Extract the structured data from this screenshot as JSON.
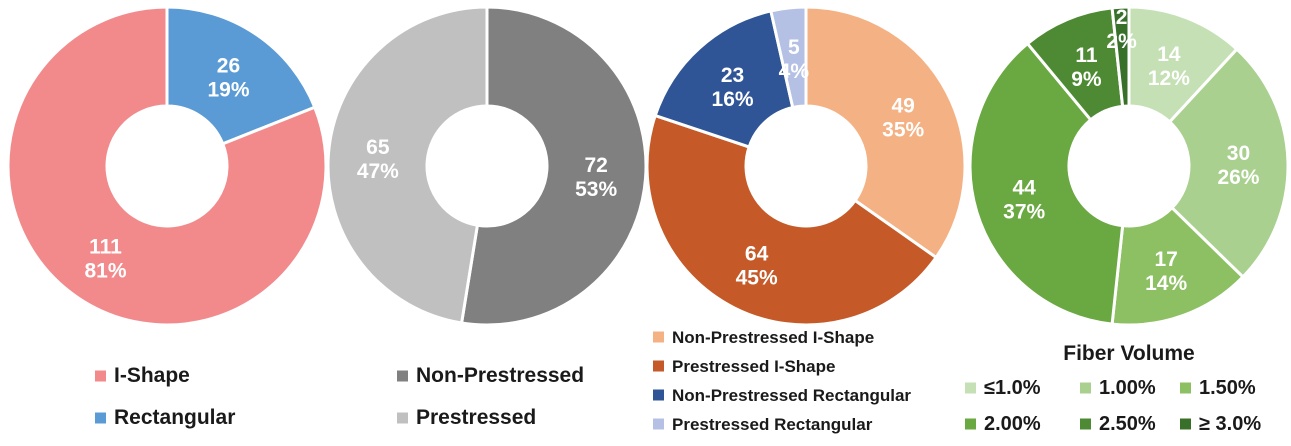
{
  "chart_data": [
    {
      "type": "pie",
      "donut": true,
      "categories": [
        "Rectangular",
        "I-Shape"
      ],
      "values": [
        26,
        111
      ],
      "percents": [
        "19%",
        "81%"
      ],
      "colors": [
        "#5b9bd5",
        "#f28a8c"
      ],
      "legend": [
        {
          "label": "I-Shape",
          "color": "#f28a8c"
        },
        {
          "label": "Rectangular",
          "color": "#5b9bd5"
        }
      ]
    },
    {
      "type": "pie",
      "donut": true,
      "categories": [
        "Non-Prestressed",
        "Prestressed"
      ],
      "values": [
        72,
        65
      ],
      "percents": [
        "53%",
        "47%"
      ],
      "colors": [
        "#808080",
        "#c0c0c0"
      ],
      "legend": [
        {
          "label": "Non-Prestressed",
          "color": "#808080"
        },
        {
          "label": "Prestressed",
          "color": "#c0c0c0"
        }
      ]
    },
    {
      "type": "pie",
      "donut": true,
      "categories": [
        "Non-Prestressed I-Shape",
        "Prestressed I-Shape",
        "Non-Prestressed Rectangular",
        "Prestressed Rectangular"
      ],
      "values": [
        49,
        64,
        23,
        5
      ],
      "percents": [
        "35%",
        "45%",
        "16%",
        "4%"
      ],
      "colors": [
        "#f4b183",
        "#c55a28",
        "#2f5597",
        "#b4c0e4"
      ],
      "legend": [
        {
          "label": "Non-Prestressed I-Shape",
          "color": "#f4b183"
        },
        {
          "label": "Prestressed I-Shape",
          "color": "#c55a28"
        },
        {
          "label": "Non-Prestressed Rectangular",
          "color": "#2f5597"
        },
        {
          "label": "Prestressed Rectangular",
          "color": "#b4c0e4"
        }
      ]
    },
    {
      "type": "pie",
      "donut": true,
      "title": "Fiber Volume",
      "categories": [
        "≤1.0%",
        "1.00%",
        "1.50%",
        "2.00%",
        "2.50%",
        "≥ 3.0%"
      ],
      "values": [
        14,
        30,
        17,
        44,
        11,
        2
      ],
      "percents": [
        "12%",
        "26%",
        "14%",
        "37%",
        "9%",
        "2%"
      ],
      "colors": [
        "#c5e0b4",
        "#a9d08e",
        "#8cc063",
        "#6aa842",
        "#4e8a33",
        "#38702a"
      ],
      "legend": [
        {
          "label": "≤1.0%",
          "color": "#c5e0b4"
        },
        {
          "label": "1.00%",
          "color": "#a9d08e"
        },
        {
          "label": "1.50%",
          "color": "#8cc063"
        },
        {
          "label": "2.00%",
          "color": "#6aa842"
        },
        {
          "label": "2.50%",
          "color": "#4e8a33"
        },
        {
          "label": "≥ 3.0%",
          "color": "#38702a"
        }
      ]
    }
  ]
}
